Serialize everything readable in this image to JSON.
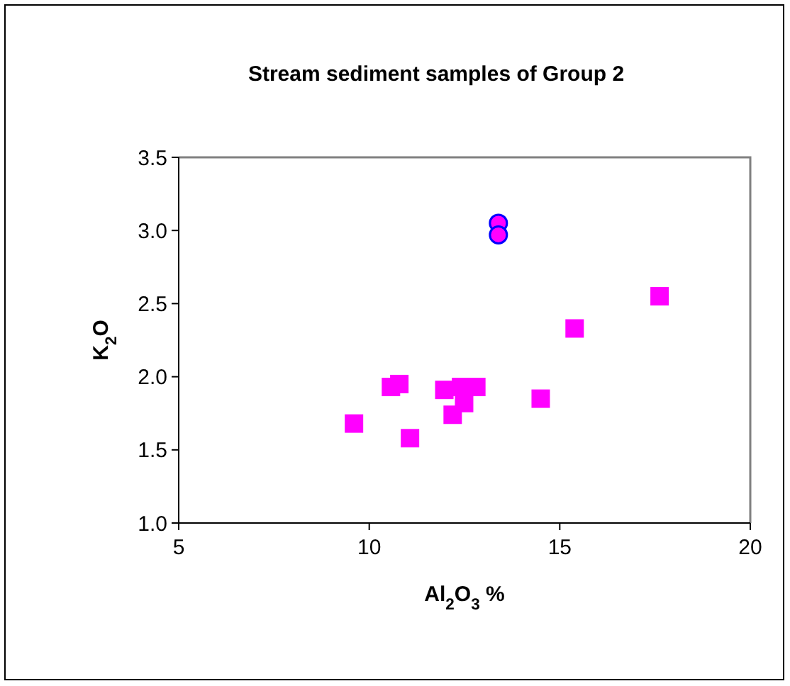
{
  "chart_data": {
    "type": "scatter",
    "title": "Stream sediment samples of Group 2",
    "xlabel": "Al$_{2}$O$_{3}$ %",
    "ylabel": "K$_{2}$O",
    "xlim": [
      5,
      20
    ],
    "xticks": [
      5,
      10,
      15,
      20
    ],
    "ylim": [
      1.0,
      3.5
    ],
    "yticks": [
      {
        "value": 1.0,
        "label": "1.0"
      },
      {
        "value": 1.5,
        "label": "1.5"
      },
      {
        "value": 2.0,
        "label": "2.0"
      },
      {
        "value": 2.5,
        "label": "2.5"
      },
      {
        "value": 3.0,
        "label": "3.0"
      },
      {
        "value": 3.5,
        "label": "3.5"
      }
    ],
    "grid": false,
    "series": [
      {
        "color": "#ff00ff",
        "marker": "square",
        "x": [
          9.6,
          10.57,
          10.79,
          11.07,
          11.97,
          12.19,
          12.41,
          12.49,
          12.81,
          14.5,
          15.39,
          17.62
        ],
        "values": [
          1.68,
          1.93,
          1.95,
          1.58,
          1.91,
          1.74,
          1.93,
          1.82,
          1.93,
          1.85,
          2.33,
          2.55
        ]
      },
      {
        "color": "#ff00ff",
        "marker": "circle",
        "x": [
          13.39,
          13.39
        ],
        "values": [
          3.05,
          2.97
        ]
      }
    ]
  }
}
